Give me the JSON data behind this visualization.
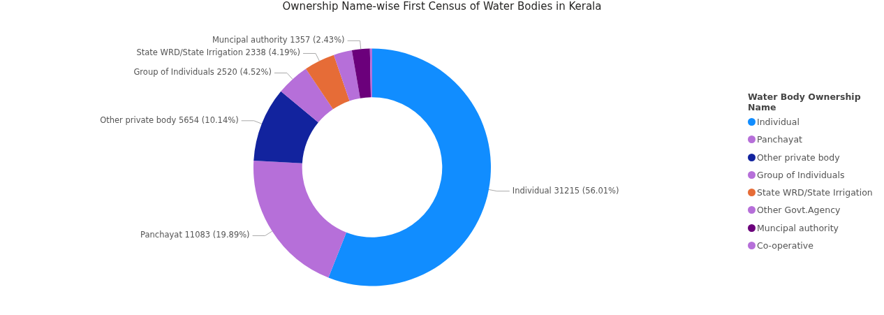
{
  "chart_data": {
    "type": "donut",
    "title": "Ownership Name-wise First Census of Water Bodies in Kerala",
    "legend_title": "Water Body Ownership Name",
    "legend": "right",
    "categories": [
      "Individual",
      "Panchayat",
      "Other private body",
      "Group of Individuals",
      "State WRD/State Irrigation",
      "Other Govt.Agency",
      "Muncipal authority",
      "Co-operative"
    ],
    "values": [
      31215,
      11083,
      5654,
      2520,
      2338,
      1394,
      1357,
      170
    ],
    "colors": [
      "#118dff",
      "#b66fd9",
      "#12239e",
      "#b66fd9",
      "#e66c37",
      "#b66fd9",
      "#6b007b",
      "#b66fd9"
    ],
    "value_labels": [
      "31215 (56.01%)",
      "11083 (19.89%)",
      "5654 (10.14%)",
      "2520 (4.52%)",
      "2338 (4.19%)",
      null,
      "1357 (2.43%)",
      null
    ]
  }
}
